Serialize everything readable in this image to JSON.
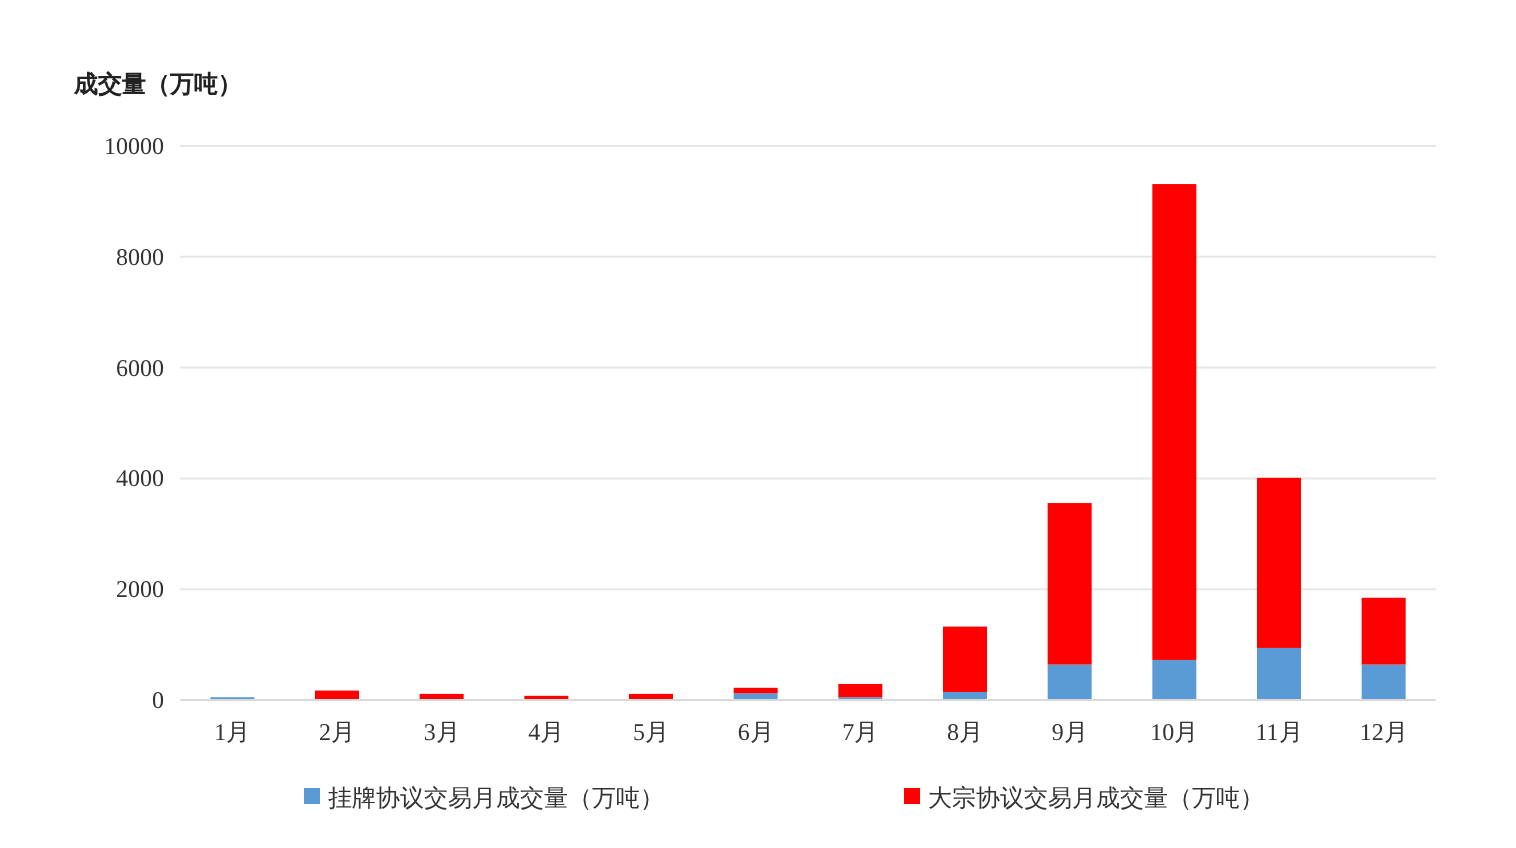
{
  "chart_data": {
    "type": "bar",
    "ylabel": "成交量（万吨）",
    "stacked": true,
    "categories": [
      "1月",
      "2月",
      "3月",
      "4月",
      "5月",
      "6月",
      "7月",
      "8月",
      "9月",
      "10月",
      "11月",
      "12月"
    ],
    "series": [
      {
        "name": "挂牌协议交易月成交量（万吨）",
        "color": "#5b9bd5",
        "values": [
          50,
          10,
          5,
          5,
          5,
          120,
          50,
          145,
          640,
          723,
          940,
          640
        ]
      },
      {
        "name": "大宗协议交易月成交量（万吨）",
        "color": "#ff0000",
        "values": [
          0,
          160,
          105,
          70,
          105,
          100,
          240,
          1180,
          2915,
          8590,
          3070,
          1205
        ]
      }
    ],
    "ylim": [
      0,
      10000
    ],
    "yticks": [
      0,
      2000,
      4000,
      6000,
      8000,
      10000
    ],
    "grid": "y",
    "legend": "bottom"
  }
}
